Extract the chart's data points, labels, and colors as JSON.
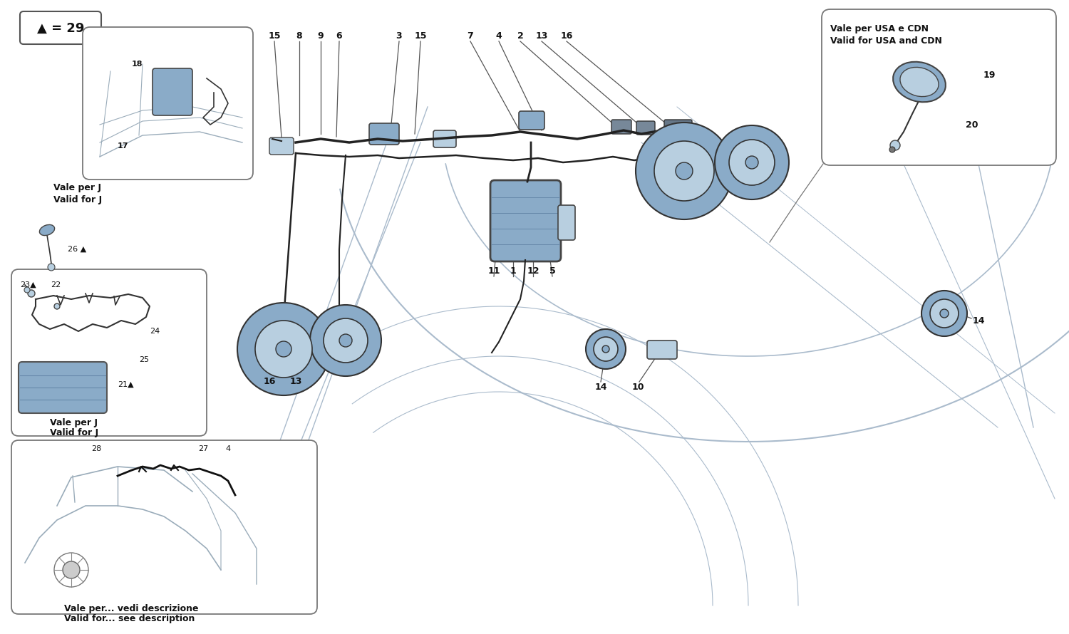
{
  "bg_color": "#ffffff",
  "fig_width": 15.0,
  "fig_height": 8.9,
  "text_color": "#111111",
  "part_blue": "#8aabc8",
  "part_blue_light": "#b8cfe0",
  "car_line_color": "#aabbcc",
  "wire_color": "#222222",
  "border_color": "#888888",
  "legend_text": "▲ = 29",
  "top_numbers": [
    {
      "n": "15",
      "fx": 0.372,
      "fy": 0.938
    },
    {
      "n": "8",
      "fx": 0.402,
      "fy": 0.938
    },
    {
      "n": "9",
      "fx": 0.428,
      "fy": 0.938
    },
    {
      "n": "6",
      "fx": 0.451,
      "fy": 0.938
    },
    {
      "n": "3",
      "fx": 0.511,
      "fy": 0.938
    },
    {
      "n": "15",
      "fx": 0.543,
      "fy": 0.938
    },
    {
      "n": "7",
      "fx": 0.605,
      "fy": 0.938
    },
    {
      "n": "4",
      "fx": 0.632,
      "fy": 0.938
    },
    {
      "n": "2",
      "fx": 0.658,
      "fy": 0.938
    },
    {
      "n": "13",
      "fx": 0.689,
      "fy": 0.938
    },
    {
      "n": "16",
      "fx": 0.717,
      "fy": 0.938
    }
  ],
  "bottom_numbers": [
    {
      "n": "11",
      "fx": 0.486,
      "fy": 0.418
    },
    {
      "n": "1",
      "fx": 0.507,
      "fy": 0.418
    },
    {
      "n": "12",
      "fx": 0.53,
      "fy": 0.418
    },
    {
      "n": "5",
      "fx": 0.555,
      "fy": 0.418
    }
  ],
  "left_numbers": [
    {
      "n": "16",
      "fx": 0.281,
      "fy": 0.535
    },
    {
      "n": "13",
      "fx": 0.306,
      "fy": 0.535
    }
  ],
  "mid_numbers": [
    {
      "n": "14",
      "fx": 0.565,
      "fy": 0.55
    },
    {
      "n": "10",
      "fx": 0.613,
      "fy": 0.55
    }
  ],
  "right_num14": {
    "n": "14",
    "fx": 0.887,
    "fy": 0.67
  }
}
